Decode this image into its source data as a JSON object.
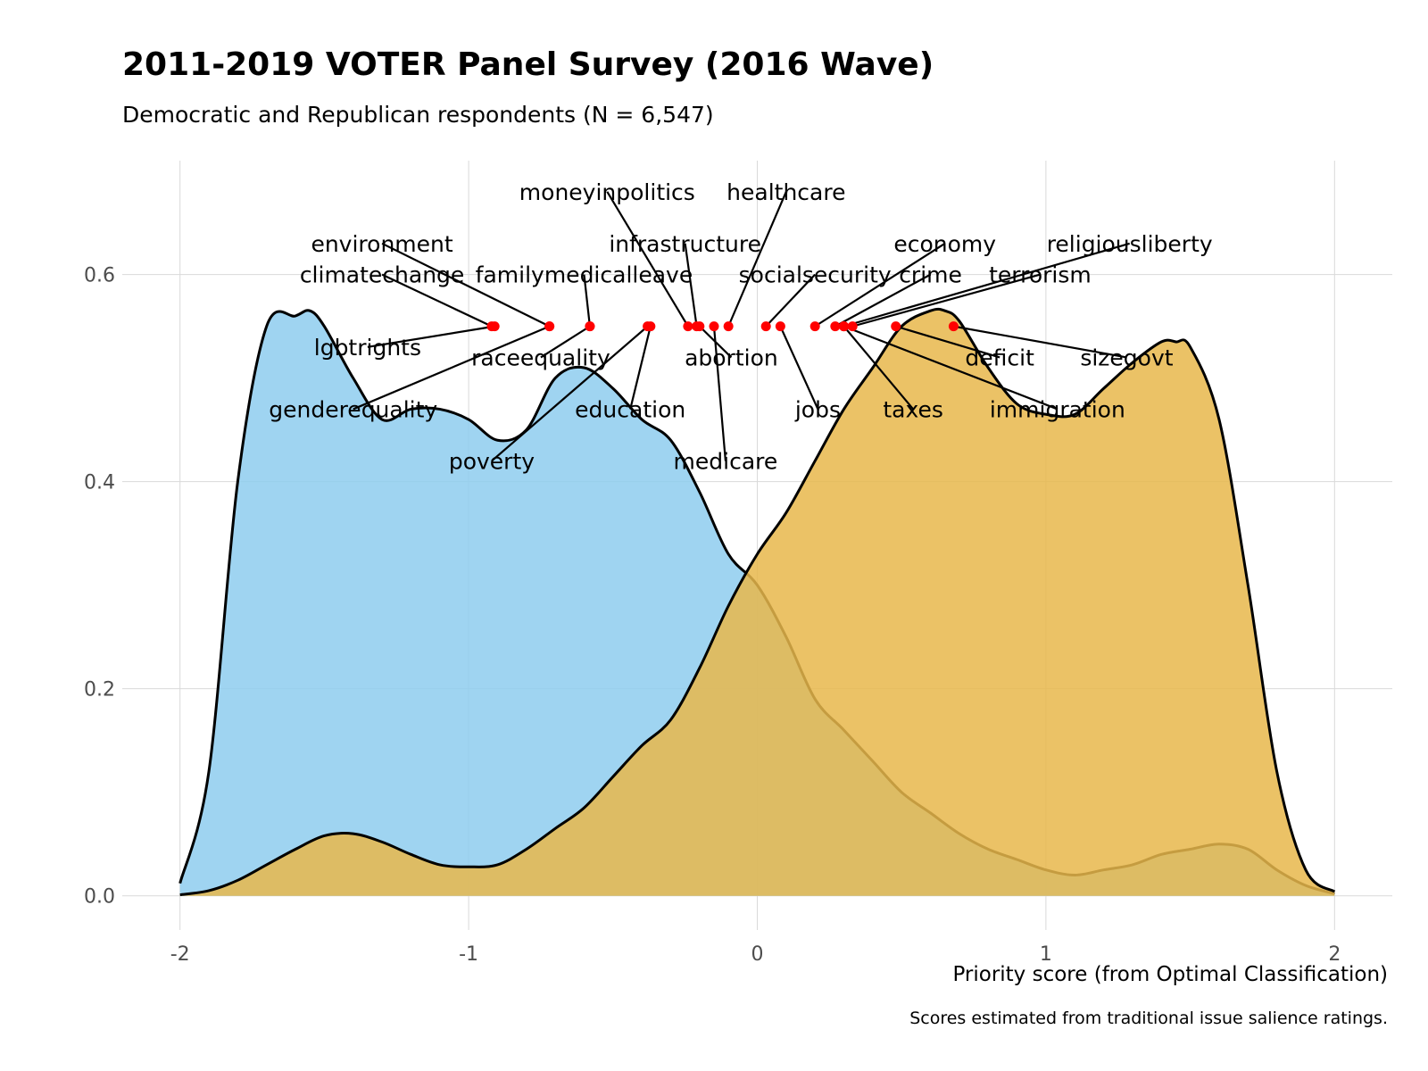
{
  "chart_data": {
    "type": "area",
    "title": "2011-2019 VOTER Panel Survey (2016 Wave)",
    "subtitle": "Democratic and Republican respondents (N = 6,547)",
    "xlabel": "Priority score (from Optimal Classification)",
    "ylabel": "",
    "caption": "Scores estimated from traditional issue salience ratings.",
    "xlim": [
      -2.2,
      2.2
    ],
    "ylim": [
      -0.033,
      0.71
    ],
    "x_ticks": [
      {
        "value": -2,
        "label": "-2"
      },
      {
        "value": -1,
        "label": "-1"
      },
      {
        "value": 0,
        "label": "0"
      },
      {
        "value": 1,
        "label": "1"
      },
      {
        "value": 2,
        "label": "2"
      }
    ],
    "y_ticks": [
      {
        "value": 0,
        "label": "0.0"
      },
      {
        "value": 0.2,
        "label": "0.2"
      },
      {
        "value": 0.4,
        "label": "0.4"
      },
      {
        "value": 0.6,
        "label": "0.6"
      }
    ],
    "grid": true,
    "legend": "none",
    "series": [
      {
        "fill": "#8ecdef",
        "x": [
          -2.0,
          -1.9,
          -1.8,
          -1.7,
          -1.6,
          -1.55,
          -1.5,
          -1.4,
          -1.3,
          -1.2,
          -1.1,
          -1.0,
          -0.9,
          -0.8,
          -0.7,
          -0.6,
          -0.5,
          -0.4,
          -0.3,
          -0.2,
          -0.1,
          0.0,
          0.1,
          0.2,
          0.3,
          0.4,
          0.5,
          0.6,
          0.7,
          0.8,
          0.9,
          1.0,
          1.1,
          1.2,
          1.3,
          1.4,
          1.5,
          1.6,
          1.7,
          1.8,
          1.9,
          2.0
        ],
        "y": [
          0.012,
          0.12,
          0.4,
          0.55,
          0.56,
          0.565,
          0.55,
          0.5,
          0.46,
          0.47,
          0.47,
          0.46,
          0.44,
          0.45,
          0.5,
          0.51,
          0.49,
          0.46,
          0.44,
          0.39,
          0.33,
          0.3,
          0.25,
          0.19,
          0.16,
          0.13,
          0.1,
          0.08,
          0.06,
          0.045,
          0.035,
          0.025,
          0.02,
          0.025,
          0.03,
          0.04,
          0.045,
          0.05,
          0.045,
          0.025,
          0.01,
          0.002
        ]
      },
      {
        "fill": "#e8b74b",
        "x": [
          -2.0,
          -1.9,
          -1.8,
          -1.7,
          -1.6,
          -1.5,
          -1.4,
          -1.3,
          -1.2,
          -1.1,
          -1.0,
          -0.9,
          -0.8,
          -0.7,
          -0.6,
          -0.5,
          -0.4,
          -0.3,
          -0.2,
          -0.1,
          0.0,
          0.1,
          0.2,
          0.3,
          0.4,
          0.5,
          0.6,
          0.65,
          0.7,
          0.8,
          0.9,
          1.0,
          1.1,
          1.2,
          1.3,
          1.4,
          1.45,
          1.5,
          1.6,
          1.7,
          1.8,
          1.9,
          2.0
        ],
        "y": [
          0.001,
          0.005,
          0.015,
          0.03,
          0.045,
          0.058,
          0.06,
          0.052,
          0.04,
          0.03,
          0.028,
          0.03,
          0.045,
          0.065,
          0.085,
          0.115,
          0.145,
          0.17,
          0.22,
          0.28,
          0.33,
          0.37,
          0.42,
          0.47,
          0.51,
          0.55,
          0.565,
          0.565,
          0.555,
          0.51,
          0.475,
          0.465,
          0.465,
          0.49,
          0.515,
          0.535,
          0.535,
          0.53,
          0.46,
          0.3,
          0.12,
          0.025,
          0.004
        ]
      }
    ],
    "issues": [
      {
        "name": "climatechange",
        "x": -0.92,
        "y": 0.55,
        "label_x": -1.3,
        "label_y": 0.6
      },
      {
        "name": "lgbtrights",
        "x": -0.91,
        "y": 0.55,
        "label_x": -1.35,
        "label_y": 0.53
      },
      {
        "name": "environment",
        "x": -0.72,
        "y": 0.55,
        "label_x": -1.3,
        "label_y": 0.63
      },
      {
        "name": "genderequality",
        "x": -0.72,
        "y": 0.55,
        "label_x": -1.4,
        "label_y": 0.47
      },
      {
        "name": "familymedicalleave",
        "x": -0.58,
        "y": 0.55,
        "label_x": -0.6,
        "label_y": 0.6
      },
      {
        "name": "raceequality",
        "x": -0.58,
        "y": 0.55,
        "label_x": -0.75,
        "label_y": 0.52
      },
      {
        "name": "poverty",
        "x": -0.38,
        "y": 0.55,
        "label_x": -0.92,
        "label_y": 0.42
      },
      {
        "name": "education",
        "x": -0.37,
        "y": 0.55,
        "label_x": -0.44,
        "label_y": 0.47
      },
      {
        "name": "moneyinpolitics",
        "x": -0.24,
        "y": 0.55,
        "label_x": -0.52,
        "label_y": 0.68
      },
      {
        "name": "infrastructure",
        "x": -0.21,
        "y": 0.55,
        "label_x": -0.25,
        "label_y": 0.63
      },
      {
        "name": "abortion",
        "x": -0.2,
        "y": 0.55,
        "label_x": -0.09,
        "label_y": 0.52
      },
      {
        "name": "medicare",
        "x": -0.15,
        "y": 0.55,
        "label_x": -0.11,
        "label_y": 0.42
      },
      {
        "name": "healthcare",
        "x": -0.1,
        "y": 0.55,
        "label_x": 0.1,
        "label_y": 0.68
      },
      {
        "name": "socialsecurity",
        "x": 0.03,
        "y": 0.55,
        "label_x": 0.2,
        "label_y": 0.6
      },
      {
        "name": "jobs",
        "x": 0.08,
        "y": 0.55,
        "label_x": 0.21,
        "label_y": 0.47
      },
      {
        "name": "economy",
        "x": 0.2,
        "y": 0.55,
        "label_x": 0.65,
        "label_y": 0.63
      },
      {
        "name": "crime",
        "x": 0.27,
        "y": 0.55,
        "label_x": 0.6,
        "label_y": 0.6
      },
      {
        "name": "religiousliberty",
        "x": 0.3,
        "y": 0.55,
        "label_x": 1.29,
        "label_y": 0.63
      },
      {
        "name": "taxes",
        "x": 0.3,
        "y": 0.55,
        "label_x": 0.54,
        "label_y": 0.47
      },
      {
        "name": "terrorism",
        "x": 0.33,
        "y": 0.55,
        "label_x": 0.98,
        "label_y": 0.6
      },
      {
        "name": "immigration",
        "x": 0.3,
        "y": 0.55,
        "label_x": 1.04,
        "label_y": 0.47
      },
      {
        "name": "deficit",
        "x": 0.48,
        "y": 0.55,
        "label_x": 0.84,
        "label_y": 0.52
      },
      {
        "name": "sizegovt",
        "x": 0.68,
        "y": 0.55,
        "label_x": 1.28,
        "label_y": 0.52
      }
    ]
  }
}
